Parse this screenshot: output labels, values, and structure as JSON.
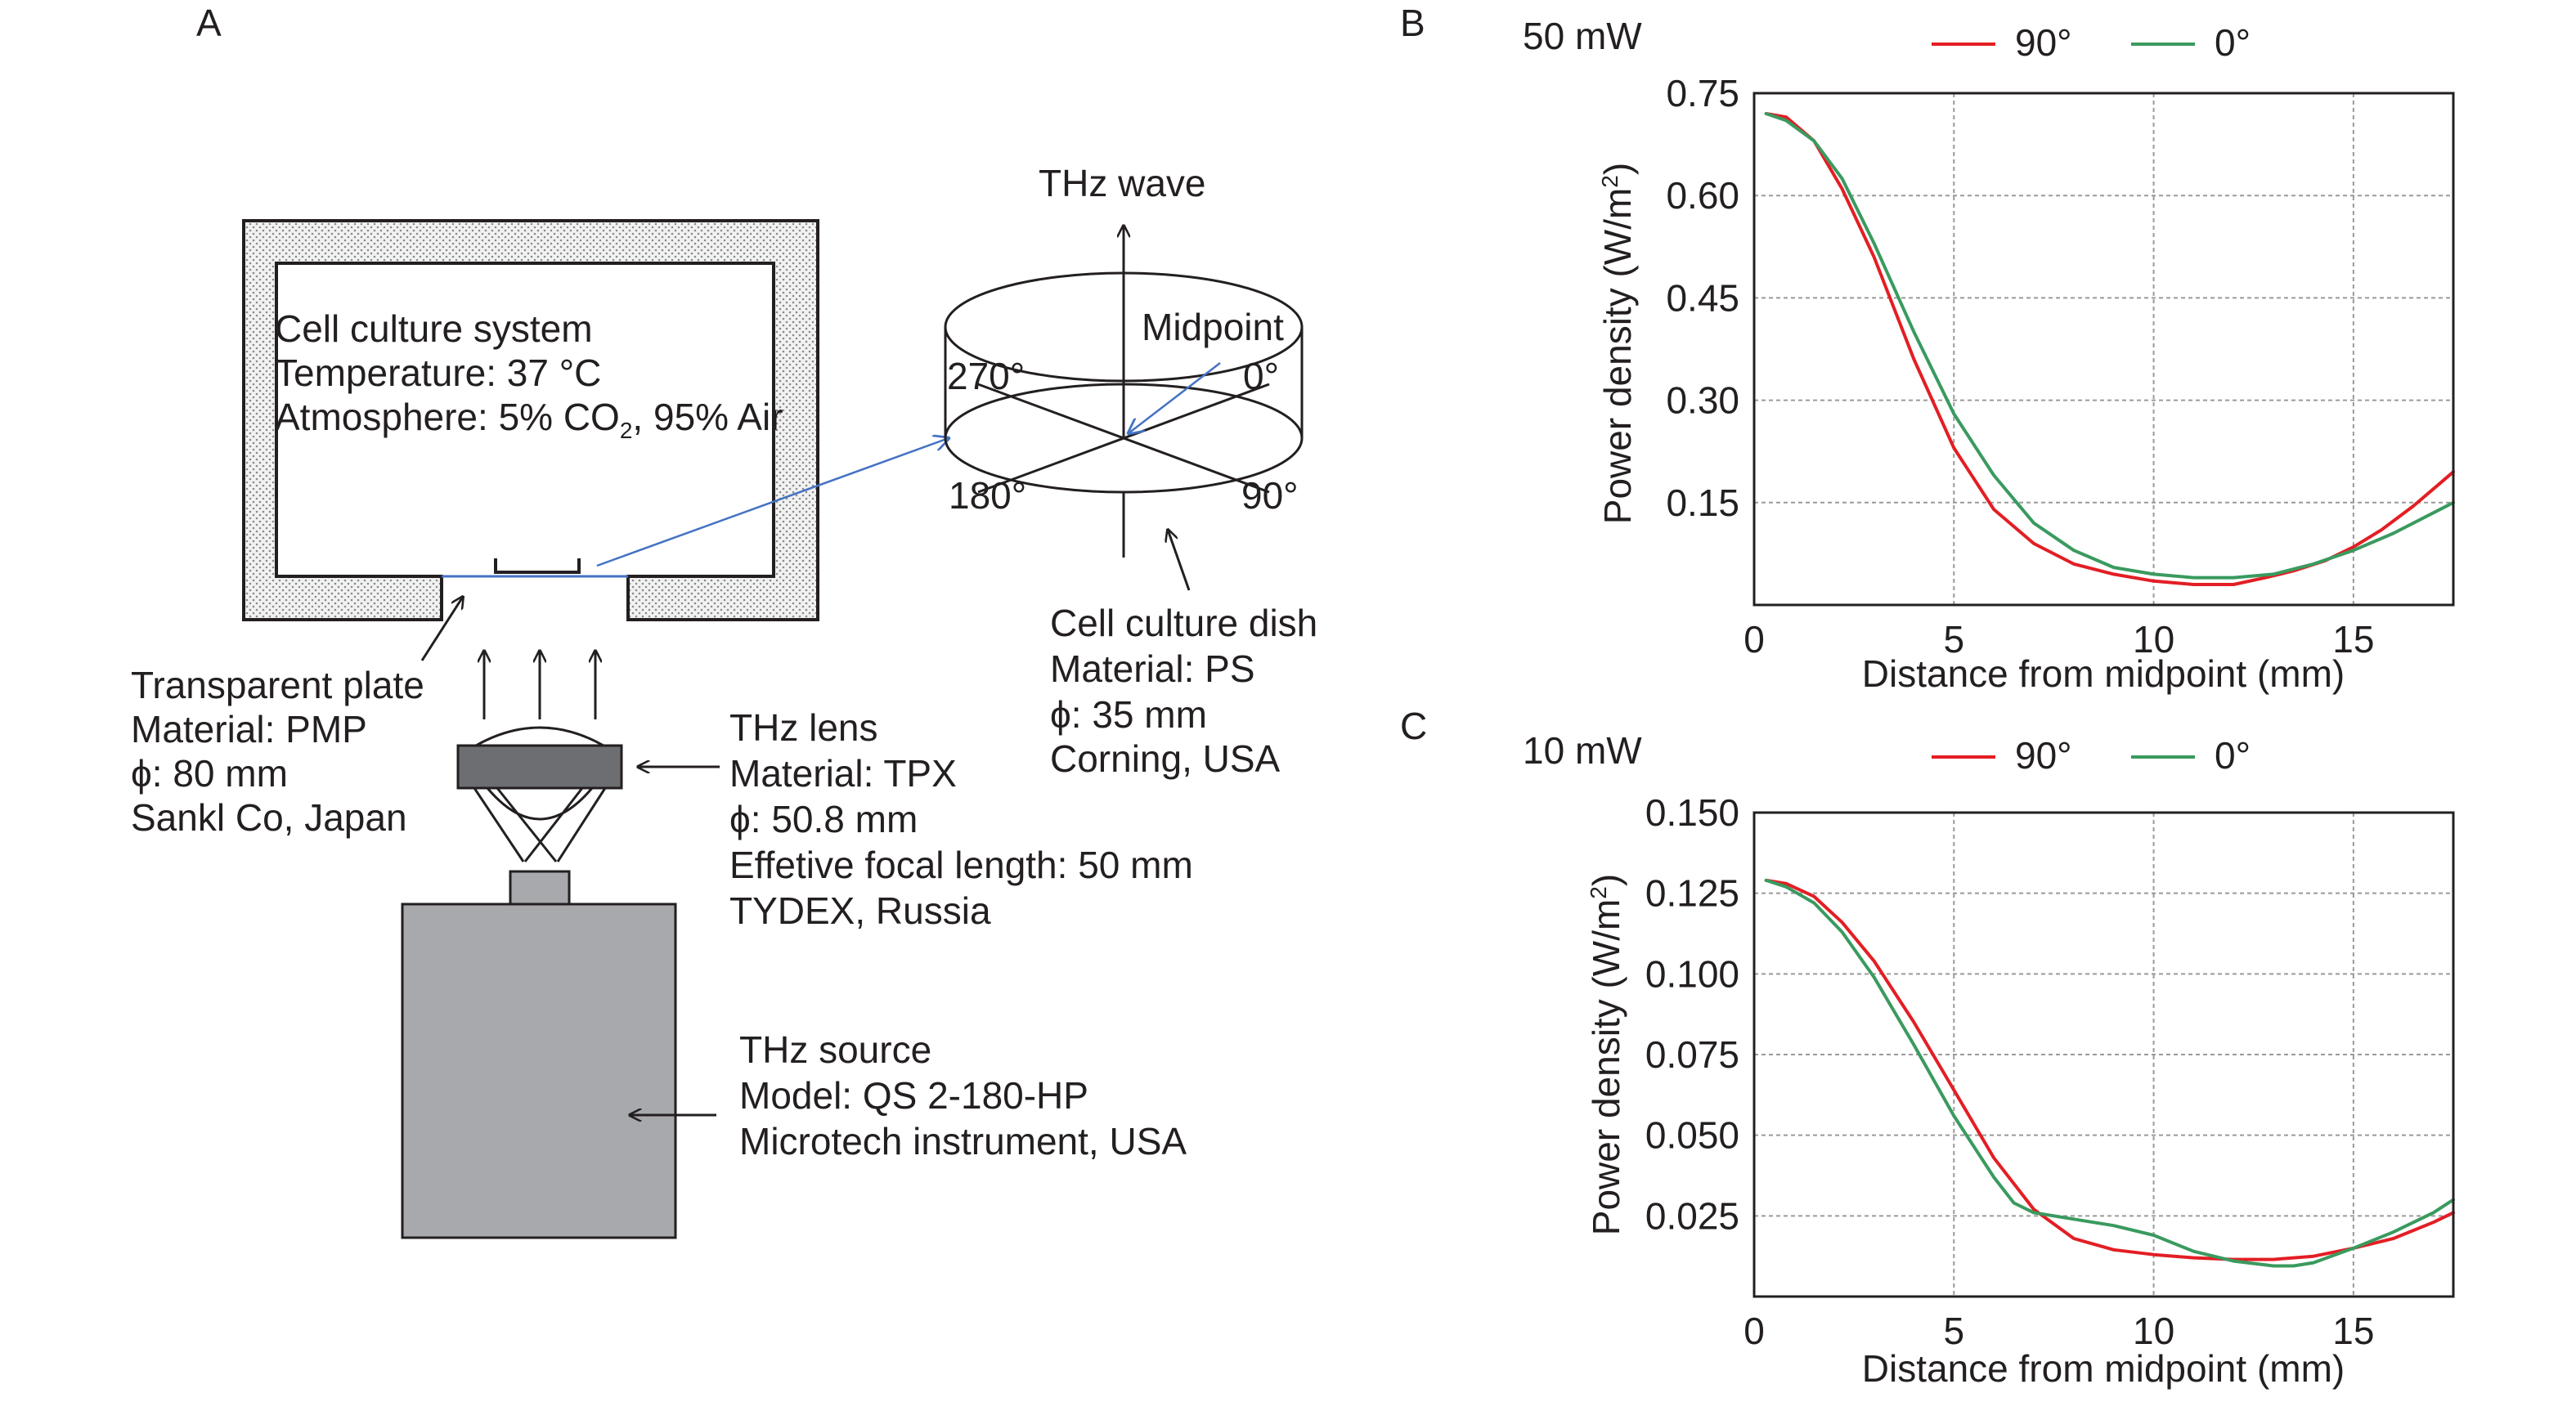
{
  "panels": {
    "a": "A",
    "b": "B",
    "c": "C"
  },
  "apparatus": {
    "incubator": {
      "lines": [
        "Cell culture system",
        "Temperature: 37 °C",
        "Atmosphere: 5% CO",
        "2",
        ", 95% Air"
      ]
    },
    "dish": {
      "wave_label": "THz wave",
      "midpoint_label": "Midpoint",
      "angles": [
        "270°",
        "0°",
        "180°",
        "90°"
      ],
      "lines": [
        "Cell culture dish",
        "Material: PS",
        "ϕ: 35 mm",
        "Corning, USA"
      ]
    },
    "plate": {
      "lines": [
        "Transparent plate",
        "Material: PMP",
        "ϕ: 80 mm",
        "Sankl Co, Japan"
      ]
    },
    "lens": {
      "lines": [
        "THz lens",
        "Material: TPX",
        "ϕ: 50.8 mm",
        "Effetive focal length: 50 mm",
        "TYDEX, Russia"
      ]
    },
    "source": {
      "lines": [
        "THz source",
        "Model: QS 2-180-HP",
        "Microtech instrument, USA"
      ]
    },
    "colors": {
      "blue_line": "#4472c4",
      "hatch_fill": "#e8e8e8",
      "lens_fill": "#6d6e71",
      "source_fill": "#a7a9ac"
    }
  },
  "chart_data": [
    {
      "type": "line",
      "panel": "B",
      "title": "50 mW",
      "xlabel": "Distance from midpoint (mm)",
      "ylabel": "Power density (W/m",
      "ylabel_sup": "2",
      "ylabel_end": ")",
      "xlim": [
        0,
        17.5
      ],
      "ylim": [
        0,
        0.75
      ],
      "xticks": [
        0,
        5,
        10,
        15
      ],
      "xtick_labels": [
        "0",
        "5",
        "10",
        "15"
      ],
      "yticks": [
        0.15,
        0.3,
        0.45,
        0.6,
        0.75
      ],
      "ytick_labels": [
        "0.15",
        "0.30",
        "0.45",
        "0.60",
        "0.75"
      ],
      "grid": true,
      "legend": "top",
      "series": [
        {
          "name": "90°",
          "color": "#e31e24",
          "x": [
            0.3,
            0.8,
            1.5,
            2.2,
            3.0,
            4.0,
            5.0,
            6.0,
            7.0,
            8.0,
            9.0,
            10.0,
            11.0,
            12.0,
            12.8,
            13.5,
            14.3,
            15.0,
            15.7,
            16.5,
            17.2,
            17.5
          ],
          "y": [
            0.72,
            0.715,
            0.68,
            0.61,
            0.51,
            0.36,
            0.23,
            0.14,
            0.09,
            0.06,
            0.045,
            0.035,
            0.03,
            0.03,
            0.04,
            0.05,
            0.065,
            0.085,
            0.11,
            0.145,
            0.18,
            0.195
          ]
        },
        {
          "name": "0°",
          "color": "#3a9a5f",
          "x": [
            0.3,
            0.8,
            1.5,
            2.2,
            3.0,
            4.0,
            5.0,
            6.0,
            7.0,
            8.0,
            9.0,
            10.0,
            11.0,
            12.0,
            13.0,
            14.0,
            15.0,
            16.0,
            17.0,
            17.5
          ],
          "y": [
            0.72,
            0.71,
            0.68,
            0.625,
            0.53,
            0.4,
            0.28,
            0.19,
            0.12,
            0.08,
            0.055,
            0.045,
            0.04,
            0.04,
            0.045,
            0.06,
            0.08,
            0.105,
            0.135,
            0.15
          ]
        }
      ]
    },
    {
      "type": "line",
      "panel": "C",
      "title": "10 mW",
      "xlabel": "Distance from midpoint (mm)",
      "ylabel": "Power density (W/m",
      "ylabel_sup": "2",
      "ylabel_end": ")",
      "xlim": [
        0,
        17.5
      ],
      "ylim": [
        0,
        0.15
      ],
      "xticks": [
        0,
        5,
        10,
        15
      ],
      "xtick_labels": [
        "0",
        "5",
        "10",
        "15"
      ],
      "yticks": [
        0.025,
        0.05,
        0.075,
        0.1,
        0.125,
        0.15
      ],
      "ytick_labels": [
        "0.025",
        "0.050",
        "0.075",
        "0.100",
        "0.125",
        "0.150"
      ],
      "grid": true,
      "legend": "top",
      "series": [
        {
          "name": "90°",
          "color": "#e31e24",
          "x": [
            0.3,
            0.8,
            1.5,
            2.2,
            3.0,
            4.0,
            5.0,
            6.0,
            7.0,
            8.0,
            9.0,
            10.0,
            11.0,
            12.0,
            13.0,
            14.0,
            15.0,
            16.0,
            17.0,
            17.5
          ],
          "y": [
            0.129,
            0.128,
            0.124,
            0.116,
            0.104,
            0.085,
            0.064,
            0.043,
            0.027,
            0.018,
            0.0145,
            0.013,
            0.012,
            0.0115,
            0.0115,
            0.0125,
            0.015,
            0.018,
            0.023,
            0.026
          ]
        },
        {
          "name": "0°",
          "color": "#3a9a5f",
          "x": [
            0.3,
            0.8,
            1.5,
            2.2,
            3.0,
            4.0,
            5.0,
            6.0,
            6.5,
            7.0,
            8.0,
            9.0,
            10.0,
            11.0,
            12.0,
            13.0,
            13.5,
            14.0,
            15.0,
            16.0,
            17.0,
            17.5
          ],
          "y": [
            0.129,
            0.127,
            0.122,
            0.113,
            0.099,
            0.078,
            0.056,
            0.037,
            0.029,
            0.026,
            0.024,
            0.022,
            0.019,
            0.014,
            0.011,
            0.0095,
            0.0095,
            0.0105,
            0.015,
            0.02,
            0.026,
            0.03
          ]
        }
      ]
    }
  ]
}
